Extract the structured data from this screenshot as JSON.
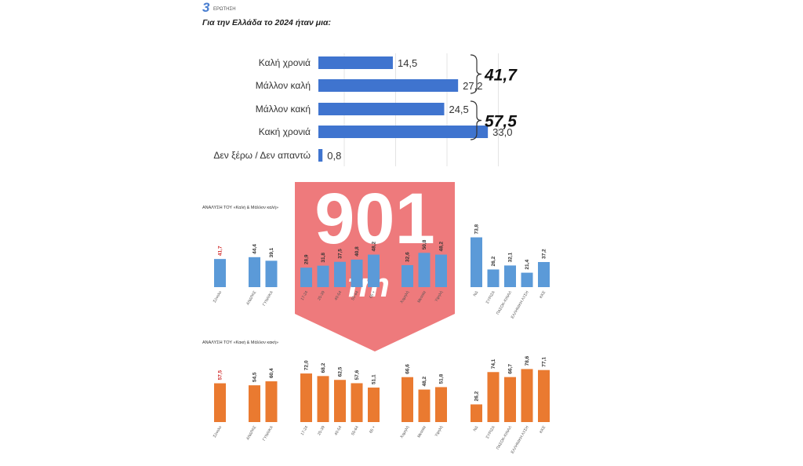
{
  "header": {
    "logo_number": "3",
    "logo_word": "ΕΡΩΤΗΣΗ",
    "question": "Για την Ελλάδα το 2024 ήταν μια:"
  },
  "watermark": {
    "text": "901",
    "sub": "fm",
    "color": "#e8474a"
  },
  "colors": {
    "blue": "#3f74cf",
    "blue_bar": "#5b9ad8",
    "orange": "#ea7a30",
    "red_label": "#d02b2b"
  },
  "chart_data": [
    {
      "type": "bar",
      "orientation": "horizontal",
      "title": "Για την Ελλάδα το 2024 ήταν μια:",
      "categories": [
        "Καλή χρονιά",
        "Μάλλον καλή",
        "Μάλλον κακή",
        "Κακή χρονιά",
        "Δεν ξέρω / Δεν απαντώ"
      ],
      "values": [
        14.5,
        27.2,
        24.5,
        33.0,
        0.8
      ],
      "value_labels": [
        "14,5",
        "27,2",
        "24,5",
        "33,0",
        "0,8"
      ],
      "xlim": [
        0,
        50
      ],
      "grid": true,
      "brackets": [
        {
          "rows": [
            0,
            1
          ],
          "label": "41,7"
        },
        {
          "rows": [
            2,
            3
          ],
          "label": "57,5"
        }
      ]
    },
    {
      "type": "bar",
      "title": "ΑΝΑΛΥΣΗ ΤΟΥ «Καλή & Μάλλον καλή»",
      "ylim": [
        0,
        80
      ],
      "groups": [
        {
          "categories": [
            "Σύνολο"
          ],
          "values": [
            41.7
          ],
          "labels": [
            "41,7"
          ]
        },
        {
          "categories": [
            "ΑΝΔΡΑΣ",
            "ΓΥΝΑΙΚΑ"
          ],
          "values": [
            44.4,
            39.1
          ],
          "labels": [
            "44,4",
            "39,1"
          ]
        },
        {
          "categories": [
            "17-24",
            "25-39",
            "40-54",
            "55-64",
            "65 +"
          ],
          "values": [
            28.9,
            31.8,
            37.5,
            40.8,
            48.2
          ],
          "labels": [
            "28,9",
            "31,8",
            "37,5",
            "40,8",
            "48,2"
          ]
        },
        {
          "categories": [
            "Χαμηλή",
            "Μεσαία",
            "Υψηλή"
          ],
          "values": [
            32.6,
            50.8,
            48.2
          ],
          "labels": [
            "32,6",
            "50,8",
            "48,2"
          ]
        },
        {
          "categories": [
            "ΝΔ",
            "ΣΥΡΙΖΑ",
            "ΠΑΣΟΚ-ΚΙΝΑΛ",
            "ΕΛΛΗΝΙΚΗ ΛΥΣΗ",
            "ΚΚΕ"
          ],
          "values": [
            73.8,
            26.2,
            32.1,
            21.4,
            37.2
          ],
          "labels": [
            "73,8",
            "26,2",
            "32,1",
            "21,4",
            "37,2"
          ]
        }
      ]
    },
    {
      "type": "bar",
      "title": "ΑΝΑΛΥΣΗ ΤΟΥ «Κακή & Μάλλον κακή»",
      "ylim": [
        0,
        80
      ],
      "groups": [
        {
          "categories": [
            "Σύνολο"
          ],
          "values": [
            57.5
          ],
          "labels": [
            "57,5"
          ]
        },
        {
          "categories": [
            "ΑΝΔΡΑΣ",
            "ΓΥΝΑΙΚΑ"
          ],
          "values": [
            54.5,
            60.4
          ],
          "labels": [
            "54,5",
            "60,4"
          ]
        },
        {
          "categories": [
            "17-24",
            "25-39",
            "40-54",
            "55-64",
            "65 +"
          ],
          "values": [
            72.0,
            68.2,
            62.5,
            57.6,
            51.1
          ],
          "labels": [
            "72,0",
            "68,2",
            "62,5",
            "57,6",
            "51,1"
          ]
        },
        {
          "categories": [
            "Χαμηλή",
            "Μεσαία",
            "Υψηλή"
          ],
          "values": [
            66.6,
            48.2,
            51.8
          ],
          "labels": [
            "66,6",
            "48,2",
            "51,8"
          ]
        },
        {
          "categories": [
            "ΝΔ",
            "ΣΥΡΙΖΑ",
            "ΠΑΣΟΚ-ΚΙΝΑΛ",
            "ΕΛΛΗΝΙΚΗ ΛΥΣΗ",
            "ΚΚΕ"
          ],
          "values": [
            26.2,
            74.1,
            66.7,
            78.6,
            77.1
          ],
          "labels": [
            "26,2",
            "74,1",
            "66,7",
            "78,6",
            "77,1"
          ]
        }
      ]
    }
  ]
}
